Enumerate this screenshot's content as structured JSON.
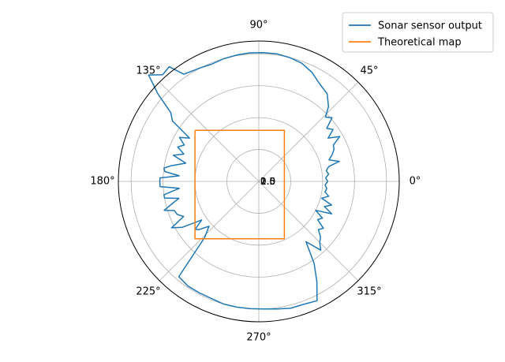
{
  "chart_data": {
    "type": "polar-line",
    "angle_ticks": [
      "0°",
      "45°",
      "90°",
      "135°",
      "180°",
      "225°",
      "270°",
      "315°"
    ],
    "angle_tick_degrees": [
      0,
      45,
      90,
      135,
      180,
      225,
      270,
      315
    ],
    "radial_ticks": [
      "0.5",
      "1.0",
      "1.5",
      "2.0"
    ],
    "radial_tick_values": [
      0.5,
      1.0,
      1.5,
      2.0
    ],
    "rlim": [
      0,
      2.2
    ],
    "grid": true,
    "legend_placement": "top-right",
    "series": [
      {
        "name": "Sonar sensor output",
        "color": "#1f77b4",
        "points": [
          [
            0,
            1.08
          ],
          [
            3,
            1.05
          ],
          [
            6,
            1.1
          ],
          [
            9,
            1.07
          ],
          [
            12,
            1.12
          ],
          [
            14,
            1.3
          ],
          [
            17,
            1.15
          ],
          [
            20,
            1.22
          ],
          [
            23,
            1.28
          ],
          [
            26,
            1.3
          ],
          [
            29,
            1.45
          ],
          [
            32,
            1.28
          ],
          [
            35,
            1.42
          ],
          [
            38,
            1.35
          ],
          [
            41,
            1.52
          ],
          [
            44,
            1.45
          ],
          [
            47,
            1.6
          ],
          [
            52,
            1.74
          ],
          [
            58,
            1.8
          ],
          [
            64,
            1.9
          ],
          [
            70,
            1.97
          ],
          [
            76,
            2.0
          ],
          [
            82,
            2.02
          ],
          [
            88,
            2.02
          ],
          [
            94,
            2.02
          ],
          [
            100,
            2.01
          ],
          [
            106,
            2.0
          ],
          [
            112,
            1.98
          ],
          [
            117,
            2.0
          ],
          [
            121,
            2.02
          ],
          [
            125,
            2.05
          ],
          [
            128,
            2.28
          ],
          [
            132,
            2.25
          ],
          [
            136,
            2.4
          ],
          [
            139,
            2.1
          ],
          [
            142,
            1.75
          ],
          [
            145,
            1.65
          ],
          [
            148,
            1.28
          ],
          [
            151,
            1.42
          ],
          [
            154,
            1.3
          ],
          [
            157,
            1.38
          ],
          [
            160,
            1.25
          ],
          [
            163,
            1.4
          ],
          [
            166,
            1.18
          ],
          [
            170,
            1.4
          ],
          [
            172,
            1.5
          ],
          [
            174,
            1.48
          ],
          [
            176,
            1.25
          ],
          [
            178,
            1.55
          ],
          [
            180,
            1.55
          ],
          [
            183,
            1.55
          ],
          [
            185,
            1.25
          ],
          [
            188,
            1.5
          ],
          [
            190,
            1.5
          ],
          [
            192,
            1.28
          ],
          [
            194,
            1.38
          ],
          [
            197,
            1.55
          ],
          [
            199,
            1.4
          ],
          [
            202,
            1.38
          ],
          [
            205,
            1.3
          ],
          [
            208,
            1.55
          ],
          [
            211,
            1.4
          ],
          [
            214,
            1.08
          ],
          [
            217,
            1.25
          ],
          [
            219,
            1.2
          ],
          [
            222,
            1.05
          ],
          [
            226,
            1.22
          ],
          [
            230,
            1.95
          ],
          [
            236,
            1.98
          ],
          [
            242,
            1.98
          ],
          [
            248,
            1.98
          ],
          [
            254,
            2.0
          ],
          [
            260,
            2.0
          ],
          [
            266,
            2.0
          ],
          [
            272,
            2.0
          ],
          [
            278,
            2.02
          ],
          [
            284,
            2.05
          ],
          [
            290,
            2.05
          ],
          [
            296,
            2.08
          ],
          [
            300,
            1.82
          ],
          [
            304,
            1.55
          ],
          [
            308,
            1.2
          ],
          [
            312,
            1.45
          ],
          [
            315,
            1.35
          ],
          [
            318,
            1.3
          ],
          [
            321,
            1.2
          ],
          [
            324,
            1.25
          ],
          [
            327,
            1.1
          ],
          [
            330,
            1.15
          ],
          [
            333,
            1.0
          ],
          [
            336,
            1.25
          ],
          [
            339,
            1.1
          ],
          [
            342,
            1.2
          ],
          [
            345,
            1.02
          ],
          [
            348,
            1.12
          ],
          [
            351,
            1.05
          ],
          [
            354,
            1.07
          ],
          [
            357,
            1.04
          ],
          [
            360,
            1.08
          ]
        ]
      },
      {
        "name": "Theoretical map",
        "color": "#ff7f0e",
        "rectangle": {
          "x_min": -1.0,
          "x_max": 0.4,
          "y_min": -0.9,
          "y_max": 0.8
        }
      }
    ]
  }
}
